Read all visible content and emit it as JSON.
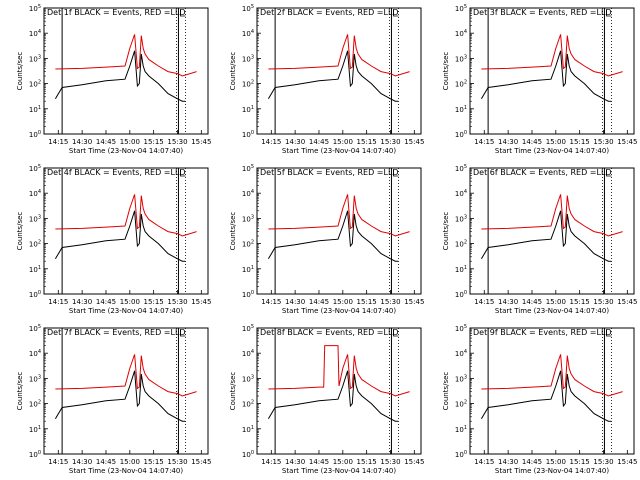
{
  "chart_data": {
    "type": "line",
    "layout": "3x3 grid of panels",
    "x_tick_labels": [
      "14:15",
      "14:30",
      "14:45",
      "15:00",
      "15:15",
      "15:30",
      "15:45"
    ],
    "x_ticks_hours": [
      14.25,
      14.5,
      14.75,
      15.0,
      15.25,
      15.5,
      15.75
    ],
    "xlim_hours": [
      14.1,
      15.82
    ],
    "y_scale": "log",
    "ylim": [
      1,
      100000
    ],
    "y_tick_values": [
      1,
      10,
      100,
      1000,
      10000,
      100000
    ],
    "ylabel": "Counts/sec",
    "xlabel": "Start Time (23-Nov-04 14:07:40)",
    "colors": {
      "events": "#000000",
      "lld": "#e00000"
    },
    "markers_hours": {
      "solid_left": 14.29,
      "solid_right": 15.51,
      "dotted_a": 15.49,
      "dotted_b": 15.585
    },
    "panels": [
      {
        "title": "Det 1f BLACK = Events, RED =LLD",
        "events": {
          "x": [
            14.22,
            14.29,
            14.5,
            14.75,
            14.95,
            15.0,
            15.05,
            15.08,
            15.1,
            15.12,
            15.14,
            15.16,
            15.2,
            15.3,
            15.4,
            15.5,
            15.55,
            15.58
          ],
          "y": [
            25,
            70,
            90,
            130,
            150,
            500,
            2000,
            80,
            100,
            1500,
            500,
            300,
            200,
            100,
            40,
            25,
            20,
            20
          ]
        },
        "lld": {
          "x": [
            14.22,
            14.5,
            14.75,
            14.95,
            15.0,
            15.05,
            15.08,
            15.1,
            15.12,
            15.14,
            15.16,
            15.2,
            15.3,
            15.4,
            15.5,
            15.55,
            15.7
          ],
          "y": [
            380,
            400,
            450,
            500,
            2500,
            9000,
            400,
            450,
            8000,
            2500,
            1500,
            900,
            500,
            300,
            250,
            200,
            300
          ]
        }
      },
      {
        "title": "Det 2f BLACK = Events, RED =LLD",
        "events": {
          "x": [
            14.22,
            14.29,
            14.5,
            14.75,
            14.95,
            15.0,
            15.05,
            15.08,
            15.1,
            15.12,
            15.14,
            15.16,
            15.2,
            15.3,
            15.4,
            15.5,
            15.55,
            15.58
          ],
          "y": [
            25,
            70,
            90,
            130,
            150,
            500,
            2000,
            80,
            100,
            1500,
            500,
            300,
            200,
            100,
            40,
            25,
            20,
            20
          ]
        },
        "lld": {
          "x": [
            14.22,
            14.5,
            14.75,
            14.95,
            15.0,
            15.05,
            15.08,
            15.1,
            15.12,
            15.14,
            15.16,
            15.2,
            15.3,
            15.4,
            15.5,
            15.55,
            15.7
          ],
          "y": [
            380,
            400,
            450,
            500,
            2500,
            9000,
            400,
            450,
            8000,
            2500,
            1500,
            900,
            500,
            300,
            250,
            200,
            300
          ]
        }
      },
      {
        "title": "Det 3f BLACK = Events, RED =LLD",
        "events": {
          "x": [
            14.22,
            14.29,
            14.5,
            14.75,
            14.95,
            15.0,
            15.05,
            15.08,
            15.1,
            15.12,
            15.14,
            15.16,
            15.2,
            15.3,
            15.4,
            15.5,
            15.55,
            15.58
          ],
          "y": [
            25,
            70,
            90,
            130,
            150,
            500,
            2000,
            80,
            100,
            1500,
            500,
            300,
            200,
            100,
            40,
            25,
            20,
            20
          ]
        },
        "lld": {
          "x": [
            14.22,
            14.5,
            14.75,
            14.95,
            15.0,
            15.05,
            15.08,
            15.1,
            15.12,
            15.14,
            15.16,
            15.2,
            15.3,
            15.4,
            15.5,
            15.55,
            15.7
          ],
          "y": [
            380,
            400,
            450,
            500,
            2500,
            9000,
            400,
            450,
            8000,
            2500,
            1500,
            900,
            500,
            300,
            250,
            200,
            300
          ]
        }
      },
      {
        "title": "Det 4f BLACK = Events, RED =LLD",
        "events": {
          "x": [
            14.22,
            14.29,
            14.5,
            14.75,
            14.95,
            15.0,
            15.05,
            15.08,
            15.1,
            15.12,
            15.14,
            15.16,
            15.2,
            15.3,
            15.4,
            15.5,
            15.55,
            15.58
          ],
          "y": [
            25,
            70,
            90,
            130,
            150,
            500,
            2000,
            80,
            100,
            1500,
            500,
            300,
            200,
            100,
            40,
            25,
            20,
            20
          ]
        },
        "lld": {
          "x": [
            14.22,
            14.5,
            14.75,
            14.95,
            15.0,
            15.05,
            15.08,
            15.1,
            15.12,
            15.14,
            15.16,
            15.2,
            15.3,
            15.4,
            15.5,
            15.55,
            15.7
          ],
          "y": [
            380,
            400,
            450,
            500,
            2500,
            9000,
            400,
            450,
            8000,
            2500,
            1500,
            900,
            500,
            300,
            250,
            200,
            300
          ]
        }
      },
      {
        "title": "Det 5f BLACK = Events, RED =LLD",
        "events": {
          "x": [
            14.22,
            14.29,
            14.5,
            14.75,
            14.95,
            15.0,
            15.05,
            15.08,
            15.1,
            15.12,
            15.14,
            15.16,
            15.2,
            15.3,
            15.4,
            15.5,
            15.55,
            15.58
          ],
          "y": [
            25,
            70,
            90,
            130,
            150,
            500,
            2000,
            80,
            100,
            1500,
            500,
            300,
            200,
            100,
            40,
            25,
            20,
            20
          ]
        },
        "lld": {
          "x": [
            14.22,
            14.5,
            14.75,
            14.95,
            15.0,
            15.05,
            15.08,
            15.1,
            15.12,
            15.14,
            15.16,
            15.2,
            15.3,
            15.4,
            15.5,
            15.55,
            15.7
          ],
          "y": [
            380,
            400,
            450,
            500,
            2500,
            9000,
            400,
            450,
            8000,
            2500,
            1500,
            900,
            500,
            300,
            250,
            200,
            300
          ]
        }
      },
      {
        "title": "Det 6f BLACK = Events, RED =LLD",
        "events": {
          "x": [
            14.22,
            14.29,
            14.5,
            14.75,
            14.95,
            15.0,
            15.05,
            15.08,
            15.1,
            15.12,
            15.14,
            15.16,
            15.2,
            15.3,
            15.4,
            15.5,
            15.55,
            15.58
          ],
          "y": [
            25,
            70,
            90,
            130,
            150,
            500,
            2000,
            80,
            100,
            1500,
            500,
            300,
            200,
            100,
            40,
            25,
            20,
            20
          ]
        },
        "lld": {
          "x": [
            14.22,
            14.5,
            14.75,
            14.95,
            15.0,
            15.05,
            15.08,
            15.1,
            15.12,
            15.14,
            15.16,
            15.2,
            15.3,
            15.4,
            15.5,
            15.55,
            15.7
          ],
          "y": [
            380,
            400,
            450,
            500,
            2500,
            9000,
            400,
            450,
            8000,
            2500,
            1500,
            900,
            500,
            300,
            250,
            200,
            300
          ]
        }
      },
      {
        "title": "Det 7f BLACK = Events, RED =LLD",
        "events": {
          "x": [
            14.22,
            14.29,
            14.5,
            14.75,
            14.95,
            15.0,
            15.05,
            15.08,
            15.1,
            15.12,
            15.14,
            15.16,
            15.2,
            15.3,
            15.4,
            15.5,
            15.55,
            15.58
          ],
          "y": [
            25,
            70,
            90,
            130,
            150,
            500,
            2000,
            80,
            100,
            1500,
            500,
            300,
            200,
            100,
            40,
            25,
            20,
            20
          ]
        },
        "lld": {
          "x": [
            14.22,
            14.5,
            14.75,
            14.95,
            15.0,
            15.05,
            15.08,
            15.1,
            15.12,
            15.14,
            15.16,
            15.2,
            15.3,
            15.4,
            15.5,
            15.55,
            15.7
          ],
          "y": [
            380,
            400,
            450,
            500,
            2500,
            9000,
            400,
            450,
            8000,
            2500,
            1500,
            900,
            500,
            300,
            250,
            200,
            300
          ]
        }
      },
      {
        "title": "Det 8f BLACK = Events, RED =LLD",
        "events": {
          "x": [
            14.22,
            14.29,
            14.5,
            14.75,
            14.95,
            15.0,
            15.05,
            15.08,
            15.1,
            15.12,
            15.14,
            15.16,
            15.2,
            15.3,
            15.4,
            15.5,
            15.55,
            15.58
          ],
          "y": [
            25,
            70,
            90,
            130,
            150,
            500,
            2000,
            80,
            100,
            1500,
            500,
            300,
            200,
            100,
            40,
            25,
            20,
            20
          ]
        },
        "lld": {
          "x": [
            14.22,
            14.5,
            14.75,
            14.8,
            14.81,
            14.95,
            14.96,
            15.0,
            15.05,
            15.08,
            15.1,
            15.12,
            15.14,
            15.16,
            15.2,
            15.3,
            15.4,
            15.5,
            15.55,
            15.7
          ],
          "y": [
            380,
            400,
            450,
            450,
            20000,
            20000,
            500,
            2500,
            9000,
            400,
            450,
            8000,
            2500,
            1500,
            900,
            500,
            300,
            250,
            200,
            300
          ]
        }
      },
      {
        "title": "Det 9f BLACK = Events, RED =LLD",
        "events": {
          "x": [
            14.22,
            14.29,
            14.5,
            14.75,
            14.95,
            15.0,
            15.05,
            15.08,
            15.1,
            15.12,
            15.14,
            15.16,
            15.2,
            15.3,
            15.4,
            15.5,
            15.55,
            15.58
          ],
          "y": [
            25,
            70,
            90,
            130,
            150,
            500,
            2000,
            80,
            100,
            1500,
            500,
            300,
            200,
            100,
            40,
            25,
            20,
            20
          ]
        },
        "lld": {
          "x": [
            14.22,
            14.5,
            14.75,
            14.95,
            15.0,
            15.05,
            15.08,
            15.1,
            15.12,
            15.14,
            15.16,
            15.2,
            15.3,
            15.4,
            15.5,
            15.55,
            15.7
          ],
          "y": [
            380,
            400,
            450,
            500,
            2500,
            9000,
            400,
            450,
            8000,
            2500,
            1500,
            900,
            500,
            300,
            250,
            200,
            300
          ]
        }
      }
    ]
  }
}
